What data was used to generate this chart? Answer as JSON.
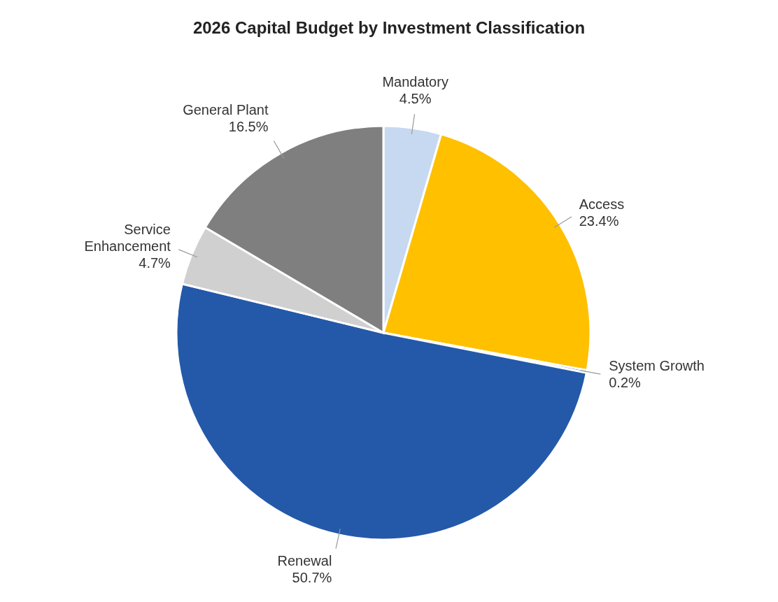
{
  "chart_data": {
    "type": "pie",
    "title": "2026 Capital Budget by Investment Classification",
    "categories": [
      "Mandatory",
      "Access",
      "System Growth",
      "Renewal",
      "Service Enhancement",
      "General Plant"
    ],
    "values": [
      4.5,
      23.4,
      0.2,
      50.7,
      4.7,
      16.5
    ],
    "value_labels": [
      "4.5%",
      "23.4%",
      "0.2%",
      "50.7%",
      "4.7%",
      "16.5%"
    ],
    "colors": [
      "#c6d9f0",
      "#ffc000",
      "#4472c4",
      "#2459a9",
      "#d0d0d0",
      "#7f7f7f"
    ],
    "legend": false
  }
}
